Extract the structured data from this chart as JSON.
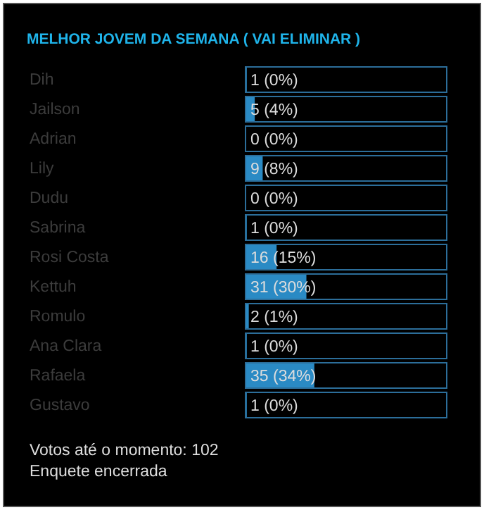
{
  "chart_data": {
    "type": "bar",
    "orientation": "horizontal",
    "title": "MELHOR JOVEM DA SEMANA ( VAI ELIMINAR )",
    "categories": [
      "Dih",
      "Jailson",
      "Adrian",
      "Lily",
      "Dudu",
      "Sabrina",
      "Rosi Costa",
      "Kettuh",
      "Romulo",
      "Ana Clara",
      "Rafaela",
      "Gustavo"
    ],
    "values": [
      1,
      5,
      0,
      9,
      0,
      1,
      16,
      31,
      2,
      1,
      35,
      1
    ],
    "value_labels": [
      "1 (0%)",
      "5 (4%)",
      "0 (0%)",
      "9 (8%)",
      "0 (0%)",
      "1 (0%)",
      "16 (15%)",
      "31 (30%)",
      "2 (1%)",
      "1 (0%)",
      "35 (34%)",
      "1 (0%)"
    ],
    "color": "#2a8ac4",
    "annotations": [
      "Votos até o momento: 102",
      "Enquete encerrada"
    ]
  }
}
